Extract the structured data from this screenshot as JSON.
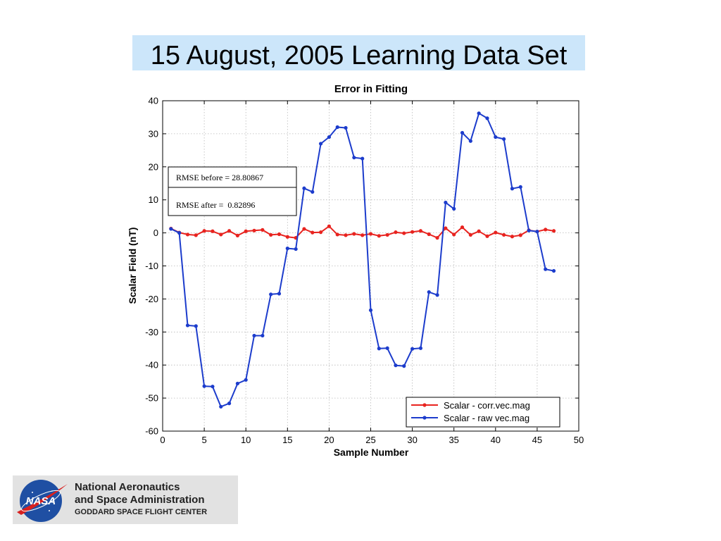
{
  "slide": {
    "title": "15 August, 2005 Learning Data Set"
  },
  "chart_data": {
    "type": "line",
    "title": "Error in Fitting",
    "xlabel": "Sample Number",
    "ylabel": "Scalar Field (nT)",
    "xlim": [
      0,
      50
    ],
    "ylim": [
      -60,
      40
    ],
    "xticks": [
      0,
      5,
      10,
      15,
      20,
      25,
      30,
      35,
      40,
      45,
      50
    ],
    "yticks": [
      -60,
      -50,
      -40,
      -30,
      -20,
      -10,
      0,
      10,
      20,
      30,
      40
    ],
    "grid": true,
    "legend_position": "bottom-right",
    "x": [
      1,
      2,
      3,
      4,
      5,
      6,
      7,
      8,
      9,
      10,
      11,
      12,
      13,
      14,
      15,
      16,
      17,
      18,
      19,
      20,
      21,
      22,
      23,
      24,
      25,
      26,
      27,
      28,
      29,
      30,
      31,
      32,
      33,
      34,
      35,
      36,
      37,
      38,
      39,
      40,
      41,
      42,
      43,
      44,
      45,
      46,
      47
    ],
    "series": [
      {
        "name": "Scalar - corr.vec.mag",
        "color": "#e8231f",
        "values": [
          1.3,
          0.1,
          -0.5,
          -0.7,
          0.6,
          0.5,
          -0.5,
          0.6,
          -0.8,
          0.5,
          0.7,
          0.9,
          -0.6,
          -0.4,
          -1.2,
          -1.5,
          1.2,
          0.1,
          0.2,
          2.0,
          -0.5,
          -0.7,
          -0.3,
          -0.7,
          -0.3,
          -0.9,
          -0.6,
          0.2,
          -0.1,
          0.3,
          0.6,
          -0.4,
          -1.5,
          1.4,
          -0.5,
          1.7,
          -0.6,
          0.5,
          -1.0,
          0.1,
          -0.6,
          -1.1,
          -0.7,
          0.8,
          0.4,
          1.0,
          0.6
        ]
      },
      {
        "name": "Scalar - raw vec.mag",
        "color": "#1c3ccc",
        "values": [
          1.2,
          0.0,
          -28.0,
          -28.2,
          -46.4,
          -46.5,
          -52.6,
          -51.6,
          -45.6,
          -44.5,
          -31.1,
          -31.1,
          -18.6,
          -18.4,
          -4.7,
          -4.9,
          13.5,
          12.4,
          27.0,
          29.0,
          32.0,
          31.8,
          22.8,
          22.5,
          -23.4,
          -35.0,
          -34.9,
          -40.1,
          -40.3,
          -35.1,
          -34.9,
          -17.9,
          -18.8,
          9.2,
          7.3,
          30.3,
          27.8,
          36.2,
          34.7,
          29.0,
          28.4,
          13.4,
          13.9,
          0.7,
          0.4,
          -11.0,
          -11.5
        ]
      }
    ],
    "annotations": [
      "RMSE before = 28.80867",
      "RMSE after =  0.82896"
    ]
  },
  "logo": {
    "line1": "National Aeronautics",
    "line2": "and Space Administration",
    "line3": "GODDARD SPACE FLIGHT CENTER",
    "badge_text": "NASA",
    "badge_color": "#1f4fa3",
    "swoosh_color": "#d8201f"
  }
}
